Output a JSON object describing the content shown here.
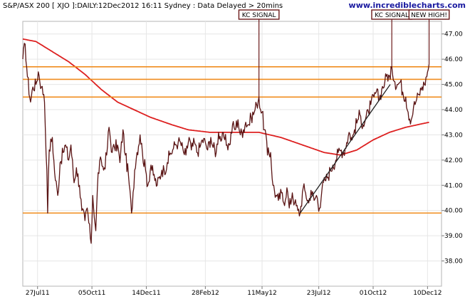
{
  "header": {
    "title": "S&P/ASX 200 [ XJO ]:DAILY:12Dec2012 16:11 Sydney : Data Delayed > 20mins",
    "watermark": "www.incrediblecharts.com"
  },
  "colors": {
    "price": "#5a1414",
    "moving_average": "#dd2020",
    "horizontal_levels": "#f08c1e",
    "trendline": "#222222",
    "annotation_box": "#6b1a1a",
    "watermark": "#1a1aa0",
    "grid": "#e6e6e6"
  },
  "chart_data": {
    "type": "line",
    "title": "S&P/ASX 200 [ XJO ]:DAILY:12Dec2012 16:11 Sydney : Data Delayed > 20mins",
    "xlabel": "",
    "ylabel": "",
    "x_axis": "date",
    "xlim": [
      "2011-07-08",
      "2012-12-28"
    ],
    "ylim": [
      37.0,
      47.5
    ],
    "y_ticks": [
      "38.00",
      "39.00",
      "40.00",
      "41.00",
      "42.00",
      "43.00",
      "44.00",
      "45.00",
      "46.00",
      "47.00"
    ],
    "x_ticks": [
      {
        "label": "27Jul11",
        "date": "2011-07-27"
      },
      {
        "label": "05Oct11",
        "date": "2011-10-05"
      },
      {
        "label": "14Dec11",
        "date": "2011-12-14"
      },
      {
        "label": "28Feb12",
        "date": "2012-02-28"
      },
      {
        "label": "11May12",
        "date": "2012-05-11"
      },
      {
        "label": "23Jul12",
        "date": "2012-07-23"
      },
      {
        "label": "01Oct12",
        "date": "2012-10-01"
      },
      {
        "label": "10Dec12",
        "date": "2012-12-10"
      }
    ],
    "grid": true,
    "series": [
      {
        "role": "price",
        "points": [
          [
            "2011-07-08",
            46.0
          ],
          [
            "2011-07-11",
            46.6
          ],
          [
            "2011-07-14",
            45.3
          ],
          [
            "2011-07-18",
            44.3
          ],
          [
            "2011-07-21",
            44.9
          ],
          [
            "2011-07-25",
            45.0
          ],
          [
            "2011-07-28",
            45.5
          ],
          [
            "2011-08-01",
            44.9
          ],
          [
            "2011-08-04",
            44.6
          ],
          [
            "2011-08-05",
            44.3
          ],
          [
            "2011-08-08",
            41.6
          ],
          [
            "2011-08-09",
            39.9
          ],
          [
            "2011-08-11",
            42.4
          ],
          [
            "2011-08-15",
            42.9
          ],
          [
            "2011-08-18",
            41.5
          ],
          [
            "2011-08-22",
            40.6
          ],
          [
            "2011-08-25",
            41.9
          ],
          [
            "2011-08-29",
            42.3
          ],
          [
            "2011-09-01",
            42.6
          ],
          [
            "2011-09-05",
            42.0
          ],
          [
            "2011-09-08",
            42.6
          ],
          [
            "2011-09-12",
            41.1
          ],
          [
            "2011-09-15",
            41.7
          ],
          [
            "2011-09-19",
            41.0
          ],
          [
            "2011-09-22",
            40.0
          ],
          [
            "2011-09-26",
            39.6
          ],
          [
            "2011-09-29",
            40.1
          ],
          [
            "2011-10-03",
            38.9
          ],
          [
            "2011-10-04",
            38.7
          ],
          [
            "2011-10-06",
            40.6
          ],
          [
            "2011-10-10",
            39.2
          ],
          [
            "2011-10-13",
            41.5
          ],
          [
            "2011-10-17",
            42.0
          ],
          [
            "2011-10-20",
            41.6
          ],
          [
            "2011-10-24",
            42.2
          ],
          [
            "2011-10-27",
            43.3
          ],
          [
            "2011-10-31",
            42.3
          ],
          [
            "2011-11-03",
            42.5
          ],
          [
            "2011-11-07",
            42.6
          ],
          [
            "2011-11-10",
            41.9
          ],
          [
            "2011-11-14",
            43.2
          ],
          [
            "2011-11-17",
            42.2
          ],
          [
            "2011-11-21",
            41.4
          ],
          [
            "2011-11-25",
            39.9
          ],
          [
            "2011-11-29",
            41.6
          ],
          [
            "2011-12-02",
            42.3
          ],
          [
            "2011-12-06",
            43.0
          ],
          [
            "2011-12-09",
            42.3
          ],
          [
            "2011-12-13",
            41.6
          ],
          [
            "2011-12-16",
            41.0
          ],
          [
            "2011-12-20",
            41.8
          ],
          [
            "2011-12-23",
            41.4
          ],
          [
            "2011-12-28",
            41.0
          ],
          [
            "2012-01-03",
            41.6
          ],
          [
            "2012-01-06",
            41.6
          ],
          [
            "2012-01-10",
            41.9
          ],
          [
            "2012-01-13",
            42.2
          ],
          [
            "2012-01-17",
            42.4
          ],
          [
            "2012-01-20",
            42.6
          ],
          [
            "2012-01-24",
            42.7
          ],
          [
            "2012-01-27",
            42.7
          ],
          [
            "2012-01-31",
            42.3
          ],
          [
            "2012-02-03",
            42.2
          ],
          [
            "2012-02-07",
            42.9
          ],
          [
            "2012-02-10",
            42.4
          ],
          [
            "2012-02-14",
            42.7
          ],
          [
            "2012-02-17",
            42.3
          ],
          [
            "2012-02-21",
            42.5
          ],
          [
            "2012-02-24",
            42.8
          ],
          [
            "2012-02-28",
            42.7
          ],
          [
            "2012-03-02",
            42.4
          ],
          [
            "2012-03-06",
            42.9
          ],
          [
            "2012-03-09",
            42.5
          ],
          [
            "2012-03-13",
            42.3
          ],
          [
            "2012-03-16",
            43.1
          ],
          [
            "2012-03-20",
            42.8
          ],
          [
            "2012-03-23",
            42.9
          ],
          [
            "2012-03-27",
            42.6
          ],
          [
            "2012-03-30",
            42.6
          ],
          [
            "2012-04-03",
            43.4
          ],
          [
            "2012-04-06",
            43.2
          ],
          [
            "2012-04-10",
            43.6
          ],
          [
            "2012-04-13",
            43.0
          ],
          [
            "2012-04-17",
            43.2
          ],
          [
            "2012-04-20",
            43.5
          ],
          [
            "2012-04-24",
            43.4
          ],
          [
            "2012-04-27",
            43.7
          ],
          [
            "2012-05-01",
            43.9
          ],
          [
            "2012-05-04",
            44.2
          ],
          [
            "2012-05-07",
            44.5
          ],
          [
            "2012-05-09",
            44.0
          ],
          [
            "2012-05-11",
            43.9
          ],
          [
            "2012-05-14",
            43.2
          ],
          [
            "2012-05-16",
            43.0
          ],
          [
            "2012-05-18",
            42.2
          ],
          [
            "2012-05-22",
            42.3
          ],
          [
            "2012-05-25",
            41.0
          ],
          [
            "2012-05-29",
            40.6
          ],
          [
            "2012-06-01",
            40.4
          ],
          [
            "2012-06-05",
            40.7
          ],
          [
            "2012-06-08",
            40.3
          ],
          [
            "2012-06-12",
            40.9
          ],
          [
            "2012-06-15",
            40.1
          ],
          [
            "2012-06-19",
            40.7
          ],
          [
            "2012-06-22",
            40.3
          ],
          [
            "2012-06-26",
            40.0
          ],
          [
            "2012-06-29",
            39.9
          ],
          [
            "2012-07-03",
            40.9
          ],
          [
            "2012-07-06",
            40.7
          ],
          [
            "2012-07-10",
            40.3
          ],
          [
            "2012-07-13",
            40.8
          ],
          [
            "2012-07-17",
            40.4
          ],
          [
            "2012-07-20",
            40.6
          ],
          [
            "2012-07-24",
            40.1
          ],
          [
            "2012-07-27",
            40.8
          ],
          [
            "2012-07-31",
            41.2
          ],
          [
            "2012-08-03",
            41.3
          ],
          [
            "2012-08-07",
            41.6
          ],
          [
            "2012-08-10",
            41.8
          ],
          [
            "2012-08-14",
            42.0
          ],
          [
            "2012-08-17",
            42.3
          ],
          [
            "2012-08-21",
            42.4
          ],
          [
            "2012-08-24",
            42.3
          ],
          [
            "2012-08-28",
            42.7
          ],
          [
            "2012-08-31",
            43.1
          ],
          [
            "2012-09-04",
            42.8
          ],
          [
            "2012-09-07",
            43.2
          ],
          [
            "2012-09-11",
            43.6
          ],
          [
            "2012-09-14",
            43.8
          ],
          [
            "2012-09-18",
            43.4
          ],
          [
            "2012-09-21",
            43.6
          ],
          [
            "2012-09-25",
            43.9
          ],
          [
            "2012-09-28",
            44.2
          ],
          [
            "2012-10-02",
            44.5
          ],
          [
            "2012-10-05",
            44.7
          ],
          [
            "2012-10-09",
            44.4
          ],
          [
            "2012-10-12",
            44.8
          ],
          [
            "2012-10-16",
            45.1
          ],
          [
            "2012-10-19",
            45.4
          ],
          [
            "2012-10-23",
            45.2
          ],
          [
            "2012-10-25",
            45.7
          ],
          [
            "2012-10-29",
            45.1
          ],
          [
            "2012-11-01",
            45.0
          ],
          [
            "2012-11-05",
            45.1
          ],
          [
            "2012-11-08",
            44.7
          ],
          [
            "2012-11-12",
            44.5
          ],
          [
            "2012-11-15",
            43.9
          ],
          [
            "2012-11-19",
            43.6
          ],
          [
            "2012-11-22",
            44.1
          ],
          [
            "2012-11-26",
            44.4
          ],
          [
            "2012-11-29",
            44.6
          ],
          [
            "2012-12-03",
            44.9
          ],
          [
            "2012-12-06",
            45.0
          ],
          [
            "2012-12-10",
            45.5
          ],
          [
            "2012-12-12",
            45.8
          ]
        ]
      },
      {
        "role": "moving_average",
        "points": [
          [
            "2011-07-08",
            46.8
          ],
          [
            "2011-07-25",
            46.7
          ],
          [
            "2011-08-15",
            46.3
          ],
          [
            "2011-09-05",
            45.9
          ],
          [
            "2011-09-26",
            45.4
          ],
          [
            "2011-10-17",
            44.8
          ],
          [
            "2011-11-07",
            44.3
          ],
          [
            "2011-11-28",
            44.0
          ],
          [
            "2011-12-19",
            43.7
          ],
          [
            "2012-01-16",
            43.4
          ],
          [
            "2012-02-06",
            43.2
          ],
          [
            "2012-03-05",
            43.1
          ],
          [
            "2012-04-02",
            43.1
          ],
          [
            "2012-05-07",
            43.1
          ],
          [
            "2012-06-04",
            42.9
          ],
          [
            "2012-07-02",
            42.6
          ],
          [
            "2012-07-30",
            42.3
          ],
          [
            "2012-08-20",
            42.2
          ],
          [
            "2012-09-10",
            42.4
          ],
          [
            "2012-10-01",
            42.8
          ],
          [
            "2012-10-22",
            43.1
          ],
          [
            "2012-11-12",
            43.3
          ],
          [
            "2012-12-12",
            43.5
          ]
        ]
      }
    ],
    "horizontal_lines": [
      45.7,
      45.2,
      44.5,
      39.9
    ],
    "trendlines": [
      {
        "from": [
          "2012-06-29",
          39.9
        ],
        "to": [
          "2012-10-23",
          45.0
        ]
      }
    ],
    "annotations": [
      {
        "label": "KC SIGNAL",
        "date": "2012-05-07",
        "value": 44.5
      },
      {
        "label": "KC SIGNAL",
        "date": "2012-10-25",
        "value": 45.7
      },
      {
        "label": "NEW HIGH!",
        "date": "2012-12-12",
        "value": 45.8
      }
    ]
  }
}
